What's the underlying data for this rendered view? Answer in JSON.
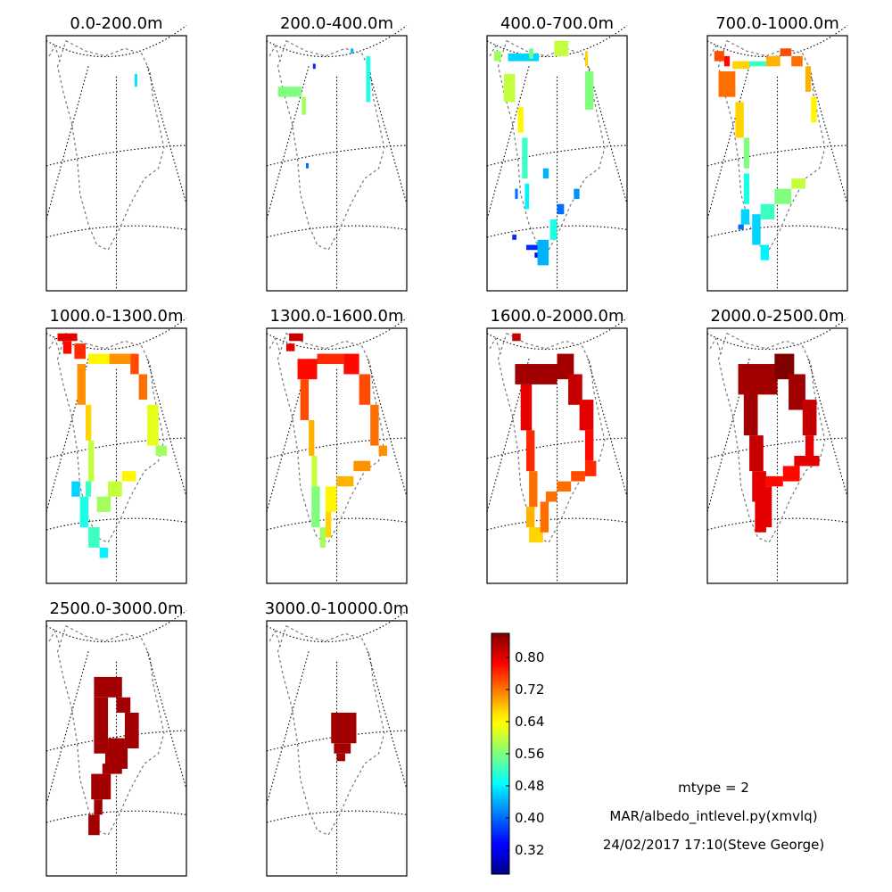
{
  "chart_data": {
    "type": "heatmap",
    "panels": [
      {
        "title": "0.0-200.0m",
        "segments": [
          [
            0.63,
            0.15,
            0.64,
            0.2,
            0.47
          ]
        ]
      },
      {
        "title": "200.0-400.0m",
        "segments": [
          [
            0.6,
            0.05,
            0.61,
            0.07,
            0.44
          ],
          [
            0.33,
            0.11,
            0.34,
            0.13,
            0.36
          ],
          [
            0.71,
            0.08,
            0.74,
            0.26,
            0.5
          ],
          [
            0.08,
            0.2,
            0.25,
            0.24,
            0.56
          ],
          [
            0.25,
            0.24,
            0.28,
            0.31,
            0.58
          ],
          [
            0.28,
            0.5,
            0.3,
            0.52,
            0.4
          ]
        ]
      },
      {
        "title": "400.0-700.0m",
        "segments": [
          [
            0.05,
            0.06,
            0.1,
            0.1,
            0.58
          ],
          [
            0.15,
            0.07,
            0.37,
            0.1,
            0.46
          ],
          [
            0.3,
            0.05,
            0.33,
            0.09,
            0.55
          ],
          [
            0.48,
            0.02,
            0.58,
            0.08,
            0.6
          ],
          [
            0.7,
            0.06,
            0.72,
            0.12,
            0.66
          ],
          [
            0.7,
            0.14,
            0.76,
            0.29,
            0.56
          ],
          [
            0.12,
            0.15,
            0.2,
            0.26,
            0.6
          ],
          [
            0.22,
            0.28,
            0.26,
            0.38,
            0.64
          ],
          [
            0.25,
            0.4,
            0.29,
            0.56,
            0.52
          ],
          [
            0.27,
            0.58,
            0.3,
            0.68,
            0.48
          ],
          [
            0.2,
            0.6,
            0.22,
            0.64,
            0.4
          ],
          [
            0.18,
            0.78,
            0.21,
            0.8,
            0.36
          ],
          [
            0.4,
            0.52,
            0.44,
            0.56,
            0.44
          ],
          [
            0.5,
            0.66,
            0.55,
            0.7,
            0.4
          ],
          [
            0.62,
            0.6,
            0.66,
            0.64,
            0.42
          ],
          [
            0.45,
            0.72,
            0.5,
            0.8,
            0.5
          ],
          [
            0.36,
            0.8,
            0.44,
            0.9,
            0.44
          ],
          [
            0.28,
            0.82,
            0.36,
            0.84,
            0.36
          ],
          [
            0.34,
            0.85,
            0.36,
            0.87,
            0.34
          ]
        ]
      },
      {
        "title": "700.0-1000.0m",
        "segments": [
          [
            0.05,
            0.06,
            0.12,
            0.1,
            0.74
          ],
          [
            0.12,
            0.08,
            0.16,
            0.12,
            0.78
          ],
          [
            0.18,
            0.1,
            0.3,
            0.13,
            0.66
          ],
          [
            0.3,
            0.1,
            0.42,
            0.12,
            0.52
          ],
          [
            0.42,
            0.08,
            0.52,
            0.12,
            0.68
          ],
          [
            0.52,
            0.05,
            0.6,
            0.08,
            0.74
          ],
          [
            0.6,
            0.08,
            0.68,
            0.12,
            0.72
          ],
          [
            0.7,
            0.12,
            0.74,
            0.22,
            0.68
          ],
          [
            0.74,
            0.24,
            0.78,
            0.34,
            0.64
          ],
          [
            0.08,
            0.14,
            0.2,
            0.24,
            0.72
          ],
          [
            0.2,
            0.26,
            0.26,
            0.4,
            0.66
          ],
          [
            0.26,
            0.4,
            0.3,
            0.52,
            0.56
          ],
          [
            0.26,
            0.54,
            0.3,
            0.66,
            0.5
          ],
          [
            0.38,
            0.66,
            0.48,
            0.72,
            0.52
          ],
          [
            0.48,
            0.6,
            0.6,
            0.66,
            0.56
          ],
          [
            0.6,
            0.56,
            0.7,
            0.6,
            0.6
          ],
          [
            0.32,
            0.7,
            0.38,
            0.82,
            0.46
          ],
          [
            0.38,
            0.82,
            0.44,
            0.88,
            0.48
          ],
          [
            0.24,
            0.68,
            0.3,
            0.74,
            0.46
          ],
          [
            0.22,
            0.74,
            0.26,
            0.76,
            0.4
          ]
        ]
      },
      {
        "title": "1000.0-1300.0m",
        "segments": [
          [
            0.08,
            0.02,
            0.22,
            0.05,
            0.8
          ],
          [
            0.12,
            0.05,
            0.18,
            0.1,
            0.78
          ],
          [
            0.2,
            0.06,
            0.28,
            0.12,
            0.76
          ],
          [
            0.3,
            0.1,
            0.45,
            0.14,
            0.64
          ],
          [
            0.45,
            0.1,
            0.6,
            0.14,
            0.7
          ],
          [
            0.6,
            0.1,
            0.66,
            0.18,
            0.74
          ],
          [
            0.66,
            0.18,
            0.72,
            0.28,
            0.72
          ],
          [
            0.72,
            0.3,
            0.8,
            0.46,
            0.62
          ],
          [
            0.78,
            0.46,
            0.86,
            0.5,
            0.58
          ],
          [
            0.22,
            0.14,
            0.28,
            0.3,
            0.7
          ],
          [
            0.28,
            0.3,
            0.32,
            0.44,
            0.66
          ],
          [
            0.3,
            0.44,
            0.34,
            0.6,
            0.6
          ],
          [
            0.28,
            0.6,
            0.32,
            0.66,
            0.52
          ],
          [
            0.18,
            0.6,
            0.24,
            0.66,
            0.46
          ],
          [
            0.24,
            0.66,
            0.3,
            0.78,
            0.5
          ],
          [
            0.3,
            0.78,
            0.38,
            0.86,
            0.52
          ],
          [
            0.38,
            0.86,
            0.44,
            0.9,
            0.48
          ],
          [
            0.44,
            0.6,
            0.54,
            0.66,
            0.6
          ],
          [
            0.54,
            0.56,
            0.64,
            0.6,
            0.64
          ],
          [
            0.36,
            0.66,
            0.46,
            0.72,
            0.58
          ]
        ]
      },
      {
        "title": "1300.0-1600.0m",
        "segments": [
          [
            0.16,
            0.02,
            0.26,
            0.05,
            0.82
          ],
          [
            0.14,
            0.06,
            0.2,
            0.09,
            0.8
          ],
          [
            0.22,
            0.12,
            0.36,
            0.2,
            0.78
          ],
          [
            0.36,
            0.1,
            0.55,
            0.14,
            0.76
          ],
          [
            0.55,
            0.1,
            0.66,
            0.18,
            0.78
          ],
          [
            0.66,
            0.18,
            0.74,
            0.3,
            0.74
          ],
          [
            0.74,
            0.3,
            0.8,
            0.46,
            0.72
          ],
          [
            0.8,
            0.46,
            0.86,
            0.5,
            0.7
          ],
          [
            0.24,
            0.2,
            0.3,
            0.36,
            0.74
          ],
          [
            0.3,
            0.36,
            0.34,
            0.5,
            0.68
          ],
          [
            0.32,
            0.5,
            0.36,
            0.62,
            0.6
          ],
          [
            0.32,
            0.62,
            0.38,
            0.78,
            0.56
          ],
          [
            0.38,
            0.78,
            0.42,
            0.86,
            0.58
          ],
          [
            0.42,
            0.62,
            0.5,
            0.72,
            0.64
          ],
          [
            0.5,
            0.58,
            0.62,
            0.62,
            0.68
          ],
          [
            0.62,
            0.52,
            0.74,
            0.56,
            0.7
          ],
          [
            0.42,
            0.72,
            0.46,
            0.82,
            0.66
          ]
        ]
      },
      {
        "title": "1600.0-2000.0m",
        "segments": [
          [
            0.18,
            0.02,
            0.24,
            0.05,
            0.82
          ],
          [
            0.2,
            0.14,
            0.5,
            0.22,
            0.84
          ],
          [
            0.5,
            0.1,
            0.62,
            0.2,
            0.84
          ],
          [
            0.58,
            0.18,
            0.68,
            0.3,
            0.82
          ],
          [
            0.66,
            0.28,
            0.76,
            0.4,
            0.8
          ],
          [
            0.7,
            0.4,
            0.76,
            0.52,
            0.78
          ],
          [
            0.7,
            0.52,
            0.78,
            0.58,
            0.76
          ],
          [
            0.6,
            0.56,
            0.7,
            0.6,
            0.74
          ],
          [
            0.5,
            0.6,
            0.6,
            0.64,
            0.72
          ],
          [
            0.42,
            0.64,
            0.5,
            0.68,
            0.72
          ],
          [
            0.24,
            0.22,
            0.32,
            0.4,
            0.8
          ],
          [
            0.28,
            0.4,
            0.34,
            0.56,
            0.76
          ],
          [
            0.3,
            0.56,
            0.36,
            0.7,
            0.72
          ],
          [
            0.28,
            0.7,
            0.34,
            0.78,
            0.68
          ],
          [
            0.3,
            0.78,
            0.4,
            0.84,
            0.66
          ],
          [
            0.38,
            0.68,
            0.44,
            0.8,
            0.72
          ]
        ]
      },
      {
        "title": "2000.0-2500.0m",
        "segments": [
          [
            0.22,
            0.14,
            0.5,
            0.26,
            0.84
          ],
          [
            0.48,
            0.1,
            0.62,
            0.2,
            0.86
          ],
          [
            0.58,
            0.18,
            0.7,
            0.32,
            0.84
          ],
          [
            0.68,
            0.28,
            0.78,
            0.42,
            0.82
          ],
          [
            0.7,
            0.42,
            0.76,
            0.54,
            0.8
          ],
          [
            0.62,
            0.5,
            0.8,
            0.54,
            0.8
          ],
          [
            0.54,
            0.54,
            0.66,
            0.6,
            0.78
          ],
          [
            0.42,
            0.58,
            0.54,
            0.62,
            0.78
          ],
          [
            0.26,
            0.24,
            0.36,
            0.42,
            0.84
          ],
          [
            0.3,
            0.42,
            0.4,
            0.56,
            0.82
          ],
          [
            0.32,
            0.56,
            0.42,
            0.68,
            0.8
          ],
          [
            0.34,
            0.68,
            0.42,
            0.8,
            0.8
          ],
          [
            0.4,
            0.62,
            0.46,
            0.78,
            0.8
          ]
        ]
      },
      {
        "title": "2500.0-3000.0m",
        "segments": [
          [
            0.34,
            0.22,
            0.54,
            0.3,
            0.84
          ],
          [
            0.34,
            0.3,
            0.44,
            0.52,
            0.84
          ],
          [
            0.5,
            0.3,
            0.6,
            0.36,
            0.84
          ],
          [
            0.56,
            0.36,
            0.66,
            0.5,
            0.84
          ],
          [
            0.44,
            0.46,
            0.56,
            0.52,
            0.84
          ],
          [
            0.42,
            0.5,
            0.58,
            0.58,
            0.84
          ],
          [
            0.4,
            0.56,
            0.54,
            0.6,
            0.84
          ],
          [
            0.32,
            0.6,
            0.46,
            0.7,
            0.84
          ],
          [
            0.34,
            0.7,
            0.4,
            0.76,
            0.84
          ],
          [
            0.3,
            0.76,
            0.38,
            0.84,
            0.84
          ]
        ]
      },
      {
        "title": "3000.0-10000.0m",
        "segments": [
          [
            0.46,
            0.36,
            0.64,
            0.48,
            0.84
          ],
          [
            0.48,
            0.48,
            0.6,
            0.52,
            0.84
          ],
          [
            0.5,
            0.52,
            0.56,
            0.55,
            0.84
          ]
        ]
      }
    ],
    "colorbar": {
      "colormap": "jet",
      "vmin": 0.26,
      "vmax": 0.86,
      "ticks": [
        "0.32",
        "0.40",
        "0.48",
        "0.56",
        "0.64",
        "0.72",
        "0.80"
      ],
      "tick_values": [
        0.32,
        0.4,
        0.48,
        0.56,
        0.64,
        0.72,
        0.8
      ]
    }
  },
  "annotations": {
    "line1": "mtype = 2",
    "line2": "MAR/albedo_intlevel.py(xmvlq)",
    "line3": "24/02/2017 17:10(Steve George)"
  }
}
